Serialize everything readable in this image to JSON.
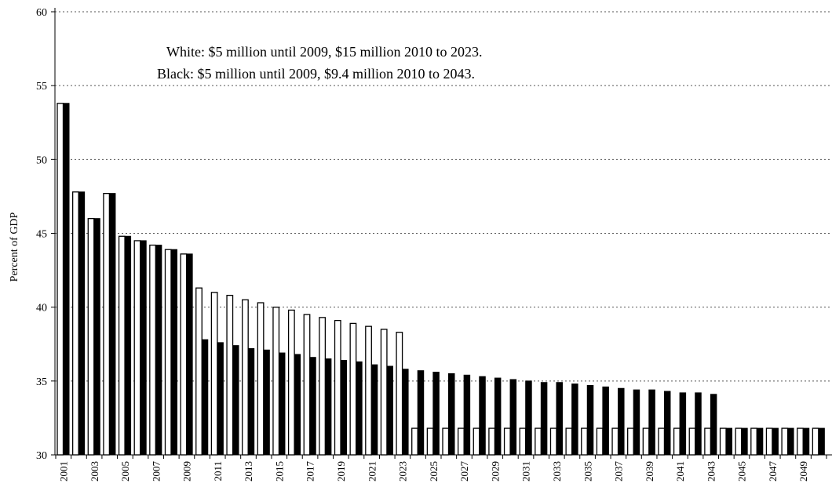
{
  "chart_data": {
    "type": "bar",
    "title": "",
    "xlabel": "",
    "ylabel": "Percent of GDP",
    "ylim": [
      30,
      60
    ],
    "yticks": [
      30,
      35,
      40,
      45,
      50,
      55,
      60
    ],
    "grid": "dotted-horizontal",
    "annotations": [
      "White: $5 million until 2009, $15 million 2010 to 2023.",
      "Black: $5 million until 2009, $9.4 million 2010 to 2043."
    ],
    "categories": [
      "2001",
      "2002",
      "2003",
      "2004",
      "2005",
      "2006",
      "2007",
      "2008",
      "2009",
      "2010",
      "2011",
      "2012",
      "2013",
      "2014",
      "2015",
      "2016",
      "2017",
      "2018",
      "2019",
      "2020",
      "2021",
      "2022",
      "2023",
      "2024",
      "2025",
      "2026",
      "2027",
      "2028",
      "2029",
      "2030",
      "2031",
      "2032",
      "2033",
      "2034",
      "2035",
      "2036",
      "2037",
      "2038",
      "2039",
      "2040",
      "2041",
      "2042",
      "2043",
      "2044",
      "2045",
      "2046",
      "2047",
      "2048",
      "2049",
      "2050"
    ],
    "xtick_labels": [
      "2001",
      "2003",
      "2005",
      "2007",
      "2009",
      "2011",
      "2013",
      "2015",
      "2017",
      "2019",
      "2021",
      "2023",
      "2025",
      "2027",
      "2029",
      "2031",
      "2033",
      "2035",
      "2037",
      "2039",
      "2041",
      "2043",
      "2045",
      "2047",
      "2049"
    ],
    "series": [
      {
        "name": "White",
        "color": "#ffffff",
        "values": [
          53.8,
          47.8,
          46.0,
          47.7,
          44.8,
          44.5,
          44.2,
          43.9,
          43.6,
          41.3,
          41.0,
          40.8,
          40.5,
          40.3,
          40.0,
          39.8,
          39.5,
          39.3,
          39.1,
          38.9,
          38.7,
          38.5,
          38.3,
          31.8,
          31.8,
          31.8,
          31.8,
          31.8,
          31.8,
          31.8,
          31.8,
          31.8,
          31.8,
          31.8,
          31.8,
          31.8,
          31.8,
          31.8,
          31.8,
          31.8,
          31.8,
          31.8,
          31.8,
          31.8,
          31.8,
          31.8,
          31.8,
          31.8,
          31.8,
          31.8
        ]
      },
      {
        "name": "Black",
        "color": "#000000",
        "values": [
          53.8,
          47.8,
          46.0,
          47.7,
          44.8,
          44.5,
          44.2,
          43.9,
          43.6,
          37.8,
          37.6,
          37.4,
          37.2,
          37.1,
          36.9,
          36.8,
          36.6,
          36.5,
          36.4,
          36.3,
          36.1,
          36.0,
          35.8,
          35.7,
          35.6,
          35.5,
          35.4,
          35.3,
          35.2,
          35.1,
          35.0,
          34.9,
          34.9,
          34.8,
          34.7,
          34.6,
          34.5,
          34.4,
          34.4,
          34.3,
          34.2,
          34.2,
          34.1,
          31.8,
          31.8,
          31.8,
          31.8,
          31.8,
          31.8,
          31.8
        ]
      }
    ]
  }
}
